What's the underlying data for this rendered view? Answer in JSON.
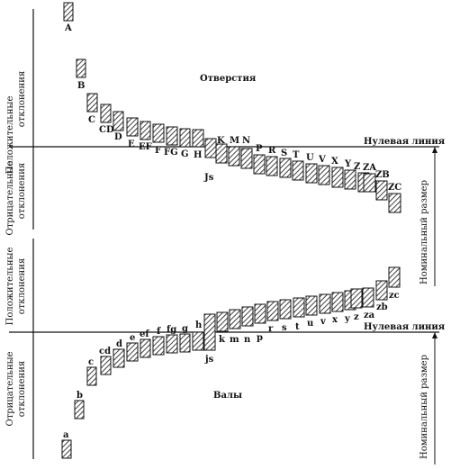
{
  "holes": {
    "title": "Отверстия",
    "letters": [
      "A",
      "B",
      "C",
      "CD",
      "D",
      "E",
      "EF",
      "F",
      "FG",
      "G",
      "H",
      "Js",
      "K",
      "M",
      "N",
      "P",
      "R",
      "S",
      "T",
      "U",
      "V",
      "X",
      "Y",
      "Z",
      "ZA",
      "ZB",
      "ZC"
    ]
  },
  "shafts": {
    "title": "Валы",
    "letters": [
      "a",
      "b",
      "c",
      "cd",
      "d",
      "e",
      "ef",
      "f",
      "fg",
      "g",
      "h",
      "js",
      "k",
      "m",
      "n",
      "p",
      "r",
      "s",
      "t",
      "u",
      "v",
      "x",
      "y",
      "z",
      "za",
      "zb",
      "zc"
    ]
  },
  "zero_line_label": "Нулевая линия",
  "nominal_size_label": "Номинальный размер",
  "positive_label_line1": "Положительные",
  "positive_label_line2": "отклонения",
  "negative_label_line1": "Отрицательные",
  "negative_label_line2": "отклонения",
  "colors": {
    "ink": "#111111",
    "background": "#ffffff"
  }
}
